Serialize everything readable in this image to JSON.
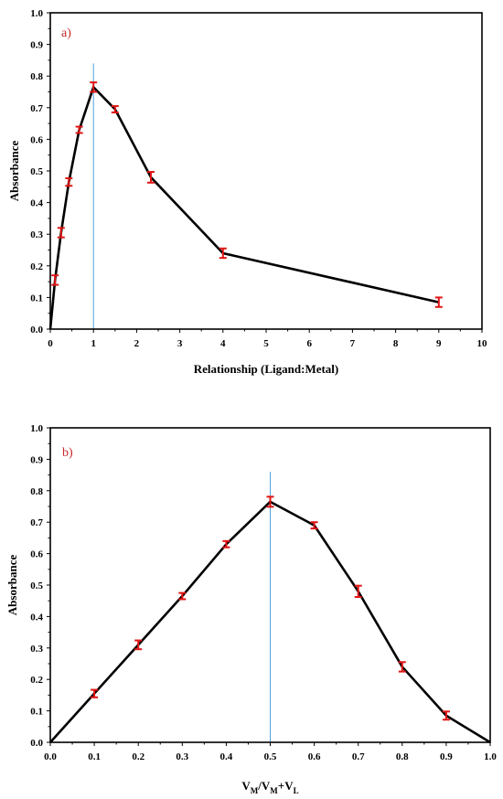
{
  "chart_data": [
    {
      "id": "a",
      "type": "line",
      "panel_label": "a)",
      "xlabel": "Relationship (Ligand:Metal)",
      "ylabel": "Absorbance",
      "xlim": [
        0,
        10
      ],
      "ylim": [
        0,
        1.0
      ],
      "xticks": [
        "0",
        "1",
        "2",
        "3",
        "4",
        "5",
        "6",
        "7",
        "8",
        "9",
        "10"
      ],
      "yticks": [
        "0.0",
        "0.1",
        "0.2",
        "0.3",
        "0.4",
        "0.5",
        "0.6",
        "0.7",
        "0.8",
        "0.9",
        "1.0"
      ],
      "x": [
        0,
        0.11,
        0.25,
        0.43,
        0.67,
        1.0,
        1.5,
        2.33,
        4.0,
        9.0
      ],
      "y": [
        0,
        0.155,
        0.305,
        0.465,
        0.63,
        0.765,
        0.695,
        0.48,
        0.24,
        0.085
      ],
      "error": [
        null,
        0.015,
        0.015,
        0.012,
        0.01,
        0.015,
        0.01,
        0.017,
        0.015,
        0.015
      ],
      "ref_x": 1.0,
      "ref_ymax": 0.84,
      "colors": {
        "line": "#000000",
        "error": "#e01515",
        "ref": "#4fa3d8",
        "panel_label": "#c62828"
      }
    },
    {
      "id": "b",
      "type": "line",
      "panel_label": "b)",
      "xlabel_main": "V",
      "xlabel_sub1": "M",
      "xlabel_mid": "/V",
      "xlabel_sub2": "M",
      "xlabel_mid2": "+V",
      "xlabel_sub3": "L",
      "ylabel": "Absorbance",
      "xlim": [
        0,
        1.0
      ],
      "ylim": [
        0,
        1.0
      ],
      "xticks": [
        "0.0",
        "0.1",
        "0.2",
        "0.3",
        "0.4",
        "0.5",
        "0.6",
        "0.7",
        "0.8",
        "0.9",
        "1.0"
      ],
      "yticks": [
        "0.0",
        "0.1",
        "0.2",
        "0.3",
        "0.4",
        "0.5",
        "0.6",
        "0.7",
        "0.8",
        "0.9",
        "1.0"
      ],
      "x": [
        0,
        0.1,
        0.2,
        0.3,
        0.4,
        0.5,
        0.6,
        0.7,
        0.8,
        0.9,
        1.0
      ],
      "y": [
        0,
        0.155,
        0.31,
        0.465,
        0.63,
        0.765,
        0.69,
        0.48,
        0.24,
        0.085,
        0
      ],
      "error": [
        null,
        0.012,
        0.014,
        0.01,
        0.01,
        0.016,
        0.01,
        0.018,
        0.015,
        0.013,
        null
      ],
      "ref_x": 0.5,
      "ref_ymax": 0.86,
      "colors": {
        "line": "#000000",
        "error": "#e01515",
        "ref": "#4fa3d8",
        "panel_label": "#c62828"
      }
    }
  ]
}
